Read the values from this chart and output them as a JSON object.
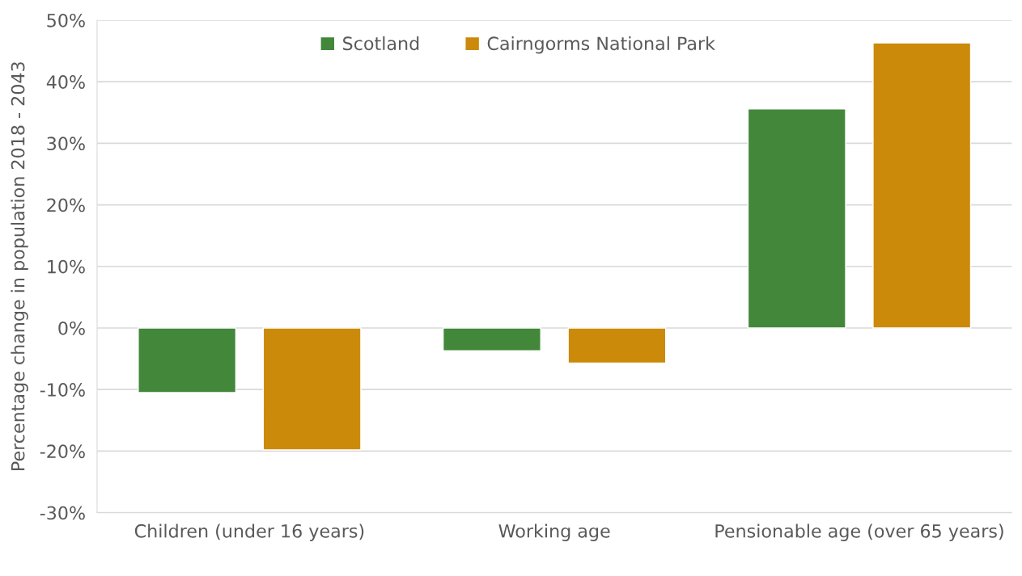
{
  "chart_data": {
    "type": "bar",
    "ylabel": "Percentage change in population 2018 - 2043",
    "categories": [
      "Children (under 16 years)",
      "Working age",
      "Pensionable age (over 65 years)"
    ],
    "series": [
      {
        "name": "Scotland",
        "color": "#43873b",
        "values": [
          -10.5,
          -3.7,
          35.6
        ]
      },
      {
        "name": "Cairngorms National Park",
        "color": "#cc8a0a",
        "values": [
          -19.8,
          -5.7,
          46.3
        ]
      }
    ],
    "ylim": [
      -30,
      50
    ],
    "yticks": [
      {
        "value": -30,
        "label": "-30%"
      },
      {
        "value": -20,
        "label": "-20%"
      },
      {
        "value": -10,
        "label": "-10%"
      },
      {
        "value": 0,
        "label": "0%"
      },
      {
        "value": 10,
        "label": "10%"
      },
      {
        "value": 20,
        "label": "20%"
      },
      {
        "value": 30,
        "label": "30%"
      },
      {
        "value": 40,
        "label": "40%"
      },
      {
        "value": 50,
        "label": "50%"
      }
    ],
    "grid": "y",
    "legend": "top"
  }
}
